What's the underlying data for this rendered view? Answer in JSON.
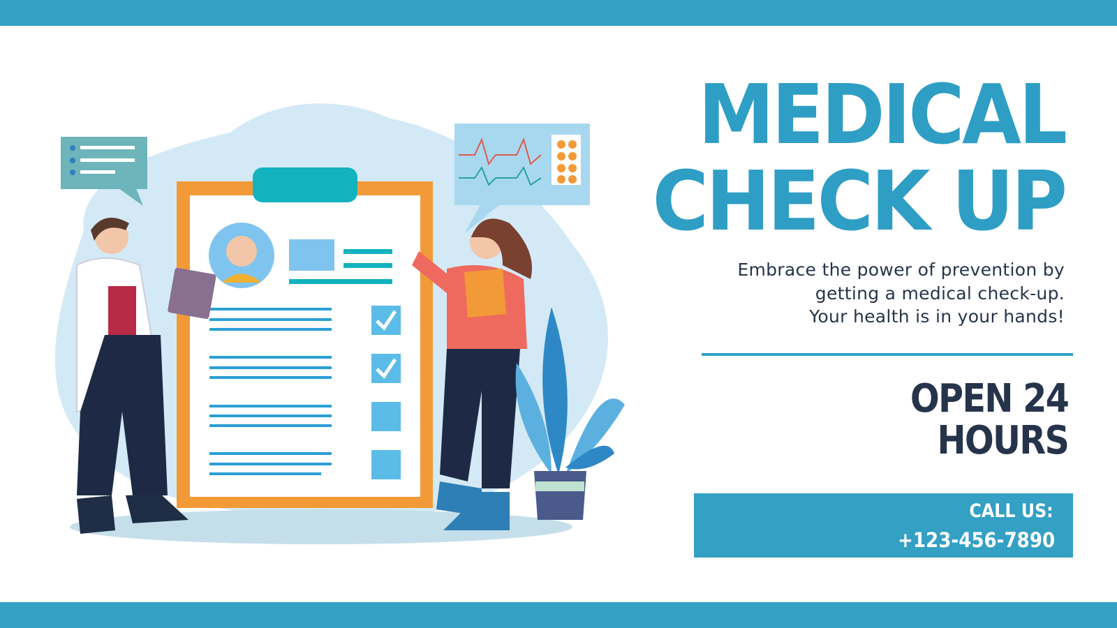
{
  "header": {
    "title_line1": "MEDICAL",
    "title_line2": "CHECK UP"
  },
  "tagline": {
    "line1": "Embrace the power of prevention by",
    "line2": "getting a medical check-up.",
    "line3": "Your health is in your hands!"
  },
  "hours": {
    "line1": "OPEN 24",
    "line2": "HOURS"
  },
  "contact": {
    "label": "CALL US:",
    "phone": "+123-456-7890"
  },
  "colors": {
    "accent": "#33a0c4",
    "text_dark": "#26344b",
    "clipboard_orange": "#f29a38",
    "teal": "#12b3bf"
  },
  "illustration": {
    "subject": "doctor-and-patient-with-checklist-clipboard"
  }
}
